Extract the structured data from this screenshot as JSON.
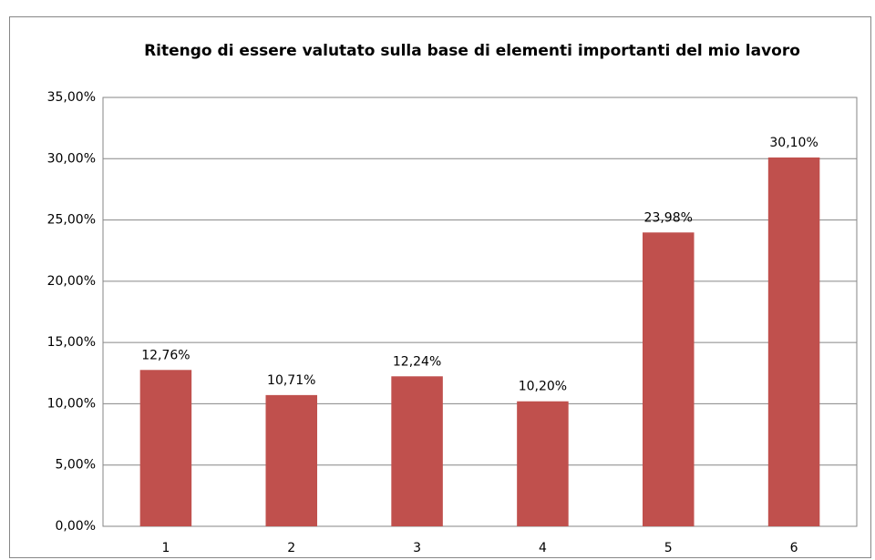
{
  "chart_data": {
    "type": "bar",
    "title": "Ritengo di essere valutato sulla base di elementi importanti del mio lavoro",
    "categories": [
      "1",
      "2",
      "3",
      "4",
      "5",
      "6"
    ],
    "values": [
      12.76,
      10.71,
      12.24,
      10.2,
      23.98,
      30.1
    ],
    "value_labels": [
      "12,76%",
      "10,71%",
      "12,24%",
      "10,20%",
      "23,98%",
      "30,10%"
    ],
    "color": "#c0504d",
    "ylim": [
      0,
      35
    ],
    "yticks": [
      {
        "value": 0,
        "label": "0,00%"
      },
      {
        "value": 5,
        "label": "5,00%"
      },
      {
        "value": 10,
        "label": "10,00%"
      },
      {
        "value": 15,
        "label": "15,00%"
      },
      {
        "value": 20,
        "label": "20,00%"
      },
      {
        "value": 25,
        "label": "25,00%"
      },
      {
        "value": 30,
        "label": "30,00%"
      },
      {
        "value": 35,
        "label": "35,00%"
      }
    ],
    "grid": true
  }
}
